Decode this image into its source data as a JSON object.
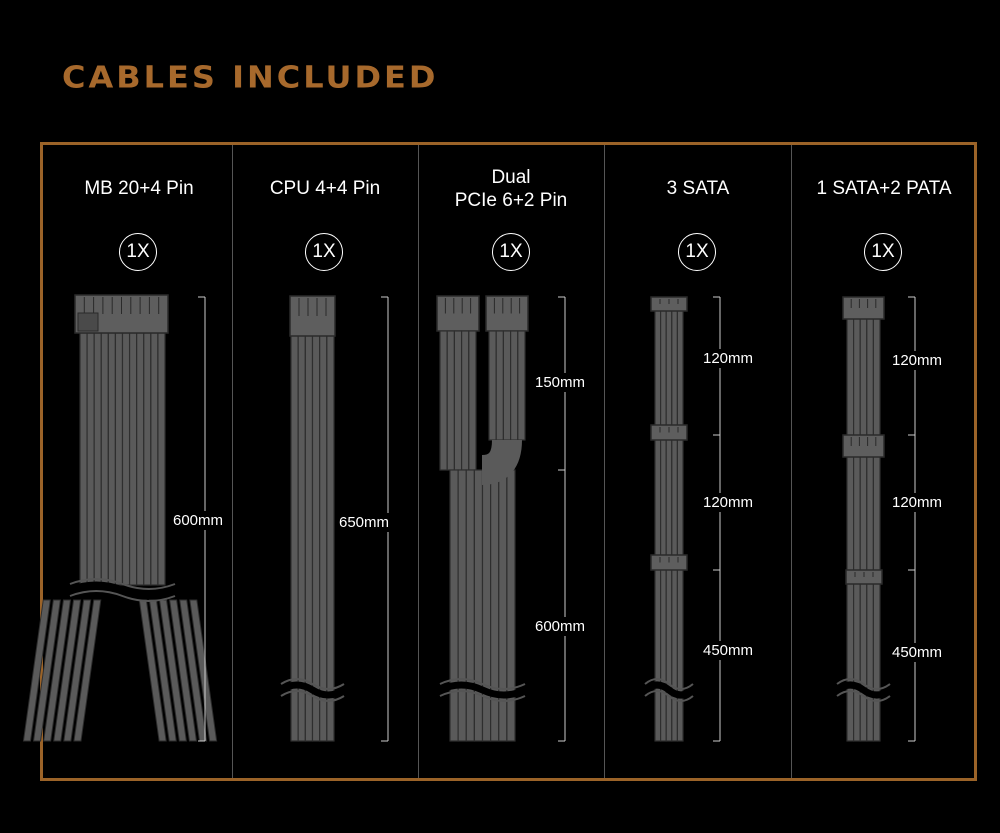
{
  "title": "CABLES INCLUDED",
  "accent_color": "#9b6328",
  "cables": [
    {
      "name": "MB 20+4 Pin",
      "quantity": "1X",
      "lengths": [
        "600mm"
      ]
    },
    {
      "name": "CPU 4+4 Pin",
      "quantity": "1X",
      "lengths": [
        "650mm"
      ]
    },
    {
      "name_line1": "Dual",
      "name_line2": "PCIe 6+2 Pin",
      "quantity": "1X",
      "lengths": [
        "150mm",
        "600mm"
      ]
    },
    {
      "name": "3 SATA",
      "quantity": "1X",
      "lengths": [
        "120mm",
        "120mm",
        "450mm"
      ]
    },
    {
      "name": "1 SATA+2 PATA",
      "quantity": "1X",
      "lengths": [
        "120mm",
        "120mm",
        "450mm"
      ]
    }
  ]
}
